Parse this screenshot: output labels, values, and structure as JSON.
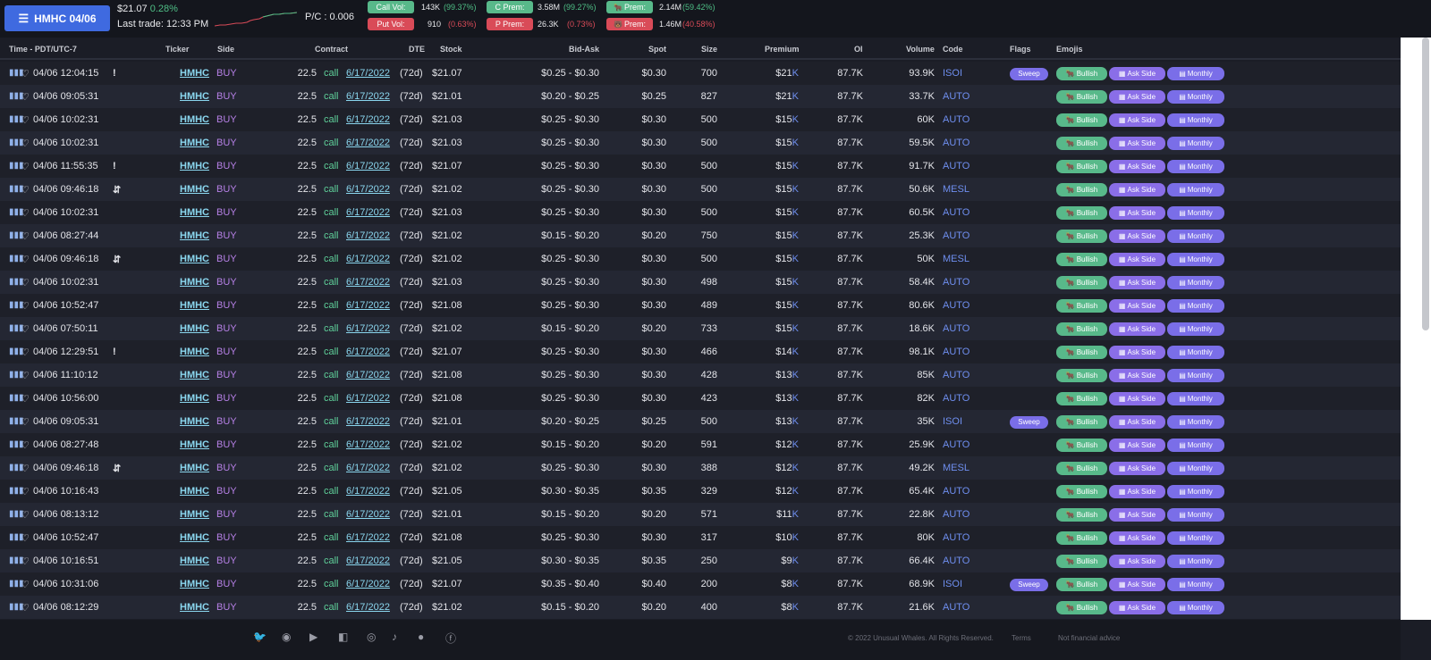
{
  "header": {
    "ticker_button": "HMHC 04/06",
    "price": "$21.07",
    "change": "0.28%",
    "last_trade": "Last trade: 12:33 PM",
    "pc_ratio": "P/C : 0.006",
    "stats": {
      "call_vol_label": "Call Vol:",
      "call_vol": "143K",
      "call_vol_pct": "(99.37%)",
      "put_vol_label": "Put Vol:",
      "put_vol": "910",
      "put_vol_pct": "(0.63%)",
      "c_prem_label": "C Prem:",
      "c_prem": "3.58M",
      "c_prem_pct": "(99.27%)",
      "p_prem_label": "P Prem:",
      "p_prem": "26.3K",
      "p_prem_pct": "(0.73%)",
      "bull_prem_label": "Prem:",
      "bull_prem": "2.14M",
      "bull_prem_pct": "(59.42%)",
      "bear_prem_label": "Prem:",
      "bear_prem": "1.46M",
      "bear_prem_pct": "(40.58%)"
    },
    "colors": {
      "accent": "#3f6ae0",
      "green": "#58b98a",
      "red": "#d94b58"
    }
  },
  "columns": {
    "time": "Time - PDT/UTC-7",
    "ticker": "Ticker",
    "side": "Side",
    "contract": "Contract",
    "dte": "DTE",
    "stock": "Stock",
    "bidask": "Bid-Ask",
    "spot": "Spot",
    "size": "Size",
    "premium": "Premium",
    "oi": "OI",
    "volume": "Volume",
    "code": "Code",
    "flags": "Flags",
    "emojis": "Emojis"
  },
  "chips": {
    "bullish": "Bullish",
    "ask_side": "Ask Side",
    "monthly": "Monthly"
  },
  "rows": [
    {
      "time": "04/06 12:04:15",
      "mark": "!",
      "ticker": "HMHC",
      "side": "BUY",
      "strike": "22.5",
      "type": "call",
      "exp": "6/17/2022",
      "dte": "(72d)",
      "stock": "$21.07",
      "bidask": "$0.25 - $0.30",
      "spot": "$0.30",
      "size": "700",
      "prem": "$21",
      "oi": "87.7K",
      "vol": "93.9K",
      "code": "ISOI",
      "flag": "Sweep"
    },
    {
      "time": "04/06 09:05:31",
      "mark": "",
      "ticker": "HMHC",
      "side": "BUY",
      "strike": "22.5",
      "type": "call",
      "exp": "6/17/2022",
      "dte": "(72d)",
      "stock": "$21.01",
      "bidask": "$0.20 - $0.25",
      "spot": "$0.25",
      "size": "827",
      "prem": "$21",
      "oi": "87.7K",
      "vol": "33.7K",
      "code": "AUTO",
      "flag": ""
    },
    {
      "time": "04/06 10:02:31",
      "mark": "",
      "ticker": "HMHC",
      "side": "BUY",
      "strike": "22.5",
      "type": "call",
      "exp": "6/17/2022",
      "dte": "(72d)",
      "stock": "$21.03",
      "bidask": "$0.25 - $0.30",
      "spot": "$0.30",
      "size": "500",
      "prem": "$15",
      "oi": "87.7K",
      "vol": "60K",
      "code": "AUTO",
      "flag": ""
    },
    {
      "time": "04/06 10:02:31",
      "mark": "",
      "ticker": "HMHC",
      "side": "BUY",
      "strike": "22.5",
      "type": "call",
      "exp": "6/17/2022",
      "dte": "(72d)",
      "stock": "$21.03",
      "bidask": "$0.25 - $0.30",
      "spot": "$0.30",
      "size": "500",
      "prem": "$15",
      "oi": "87.7K",
      "vol": "59.5K",
      "code": "AUTO",
      "flag": ""
    },
    {
      "time": "04/06 11:55:35",
      "mark": "!",
      "ticker": "HMHC",
      "side": "BUY",
      "strike": "22.5",
      "type": "call",
      "exp": "6/17/2022",
      "dte": "(72d)",
      "stock": "$21.07",
      "bidask": "$0.25 - $0.30",
      "spot": "$0.30",
      "size": "500",
      "prem": "$15",
      "oi": "87.7K",
      "vol": "91.7K",
      "code": "AUTO",
      "flag": ""
    },
    {
      "time": "04/06 09:46:18",
      "mark": "⇵",
      "ticker": "HMHC",
      "side": "BUY",
      "strike": "22.5",
      "type": "call",
      "exp": "6/17/2022",
      "dte": "(72d)",
      "stock": "$21.02",
      "bidask": "$0.25 - $0.30",
      "spot": "$0.30",
      "size": "500",
      "prem": "$15",
      "oi": "87.7K",
      "vol": "50.6K",
      "code": "MESL",
      "flag": ""
    },
    {
      "time": "04/06 10:02:31",
      "mark": "",
      "ticker": "HMHC",
      "side": "BUY",
      "strike": "22.5",
      "type": "call",
      "exp": "6/17/2022",
      "dte": "(72d)",
      "stock": "$21.03",
      "bidask": "$0.25 - $0.30",
      "spot": "$0.30",
      "size": "500",
      "prem": "$15",
      "oi": "87.7K",
      "vol": "60.5K",
      "code": "AUTO",
      "flag": ""
    },
    {
      "time": "04/06 08:27:44",
      "mark": "",
      "ticker": "HMHC",
      "side": "BUY",
      "strike": "22.5",
      "type": "call",
      "exp": "6/17/2022",
      "dte": "(72d)",
      "stock": "$21.02",
      "bidask": "$0.15 - $0.20",
      "spot": "$0.20",
      "size": "750",
      "prem": "$15",
      "oi": "87.7K",
      "vol": "25.3K",
      "code": "AUTO",
      "flag": ""
    },
    {
      "time": "04/06 09:46:18",
      "mark": "⇵",
      "ticker": "HMHC",
      "side": "BUY",
      "strike": "22.5",
      "type": "call",
      "exp": "6/17/2022",
      "dte": "(72d)",
      "stock": "$21.02",
      "bidask": "$0.25 - $0.30",
      "spot": "$0.30",
      "size": "500",
      "prem": "$15",
      "oi": "87.7K",
      "vol": "50K",
      "code": "MESL",
      "flag": ""
    },
    {
      "time": "04/06 10:02:31",
      "mark": "",
      "ticker": "HMHC",
      "side": "BUY",
      "strike": "22.5",
      "type": "call",
      "exp": "6/17/2022",
      "dte": "(72d)",
      "stock": "$21.03",
      "bidask": "$0.25 - $0.30",
      "spot": "$0.30",
      "size": "498",
      "prem": "$15",
      "oi": "87.7K",
      "vol": "58.4K",
      "code": "AUTO",
      "flag": ""
    },
    {
      "time": "04/06 10:52:47",
      "mark": "",
      "ticker": "HMHC",
      "side": "BUY",
      "strike": "22.5",
      "type": "call",
      "exp": "6/17/2022",
      "dte": "(72d)",
      "stock": "$21.08",
      "bidask": "$0.25 - $0.30",
      "spot": "$0.30",
      "size": "489",
      "prem": "$15",
      "oi": "87.7K",
      "vol": "80.6K",
      "code": "AUTO",
      "flag": ""
    },
    {
      "time": "04/06 07:50:11",
      "mark": "",
      "ticker": "HMHC",
      "side": "BUY",
      "strike": "22.5",
      "type": "call",
      "exp": "6/17/2022",
      "dte": "(72d)",
      "stock": "$21.02",
      "bidask": "$0.15 - $0.20",
      "spot": "$0.20",
      "size": "733",
      "prem": "$15",
      "oi": "87.7K",
      "vol": "18.6K",
      "code": "AUTO",
      "flag": ""
    },
    {
      "time": "04/06 12:29:51",
      "mark": "!",
      "ticker": "HMHC",
      "side": "BUY",
      "strike": "22.5",
      "type": "call",
      "exp": "6/17/2022",
      "dte": "(72d)",
      "stock": "$21.07",
      "bidask": "$0.25 - $0.30",
      "spot": "$0.30",
      "size": "466",
      "prem": "$14",
      "oi": "87.7K",
      "vol": "98.1K",
      "code": "AUTO",
      "flag": ""
    },
    {
      "time": "04/06 11:10:12",
      "mark": "",
      "ticker": "HMHC",
      "side": "BUY",
      "strike": "22.5",
      "type": "call",
      "exp": "6/17/2022",
      "dte": "(72d)",
      "stock": "$21.08",
      "bidask": "$0.25 - $0.30",
      "spot": "$0.30",
      "size": "428",
      "prem": "$13",
      "oi": "87.7K",
      "vol": "85K",
      "code": "AUTO",
      "flag": ""
    },
    {
      "time": "04/06 10:56:00",
      "mark": "",
      "ticker": "HMHC",
      "side": "BUY",
      "strike": "22.5",
      "type": "call",
      "exp": "6/17/2022",
      "dte": "(72d)",
      "stock": "$21.08",
      "bidask": "$0.25 - $0.30",
      "spot": "$0.30",
      "size": "423",
      "prem": "$13",
      "oi": "87.7K",
      "vol": "82K",
      "code": "AUTO",
      "flag": ""
    },
    {
      "time": "04/06 09:05:31",
      "mark": "",
      "ticker": "HMHC",
      "side": "BUY",
      "strike": "22.5",
      "type": "call",
      "exp": "6/17/2022",
      "dte": "(72d)",
      "stock": "$21.01",
      "bidask": "$0.20 - $0.25",
      "spot": "$0.25",
      "size": "500",
      "prem": "$13",
      "oi": "87.7K",
      "vol": "35K",
      "code": "ISOI",
      "flag": "Sweep"
    },
    {
      "time": "04/06 08:27:48",
      "mark": "",
      "ticker": "HMHC",
      "side": "BUY",
      "strike": "22.5",
      "type": "call",
      "exp": "6/17/2022",
      "dte": "(72d)",
      "stock": "$21.02",
      "bidask": "$0.15 - $0.20",
      "spot": "$0.20",
      "size": "591",
      "prem": "$12",
      "oi": "87.7K",
      "vol": "25.9K",
      "code": "AUTO",
      "flag": ""
    },
    {
      "time": "04/06 09:46:18",
      "mark": "⇵",
      "ticker": "HMHC",
      "side": "BUY",
      "strike": "22.5",
      "type": "call",
      "exp": "6/17/2022",
      "dte": "(72d)",
      "stock": "$21.02",
      "bidask": "$0.25 - $0.30",
      "spot": "$0.30",
      "size": "388",
      "prem": "$12",
      "oi": "87.7K",
      "vol": "49.2K",
      "code": "MESL",
      "flag": ""
    },
    {
      "time": "04/06 10:16:43",
      "mark": "",
      "ticker": "HMHC",
      "side": "BUY",
      "strike": "22.5",
      "type": "call",
      "exp": "6/17/2022",
      "dte": "(72d)",
      "stock": "$21.05",
      "bidask": "$0.30 - $0.35",
      "spot": "$0.35",
      "size": "329",
      "prem": "$12",
      "oi": "87.7K",
      "vol": "65.4K",
      "code": "AUTO",
      "flag": ""
    },
    {
      "time": "04/06 08:13:12",
      "mark": "",
      "ticker": "HMHC",
      "side": "BUY",
      "strike": "22.5",
      "type": "call",
      "exp": "6/17/2022",
      "dte": "(72d)",
      "stock": "$21.01",
      "bidask": "$0.15 - $0.20",
      "spot": "$0.20",
      "size": "571",
      "prem": "$11",
      "oi": "87.7K",
      "vol": "22.8K",
      "code": "AUTO",
      "flag": ""
    },
    {
      "time": "04/06 10:52:47",
      "mark": "",
      "ticker": "HMHC",
      "side": "BUY",
      "strike": "22.5",
      "type": "call",
      "exp": "6/17/2022",
      "dte": "(72d)",
      "stock": "$21.08",
      "bidask": "$0.25 - $0.30",
      "spot": "$0.30",
      "size": "317",
      "prem": "$10",
      "oi": "87.7K",
      "vol": "80K",
      "code": "AUTO",
      "flag": ""
    },
    {
      "time": "04/06 10:16:51",
      "mark": "",
      "ticker": "HMHC",
      "side": "BUY",
      "strike": "22.5",
      "type": "call",
      "exp": "6/17/2022",
      "dte": "(72d)",
      "stock": "$21.05",
      "bidask": "$0.30 - $0.35",
      "spot": "$0.35",
      "size": "250",
      "prem": "$9",
      "oi": "87.7K",
      "vol": "66.4K",
      "code": "AUTO",
      "flag": ""
    },
    {
      "time": "04/06 10:31:06",
      "mark": "",
      "ticker": "HMHC",
      "side": "BUY",
      "strike": "22.5",
      "type": "call",
      "exp": "6/17/2022",
      "dte": "(72d)",
      "stock": "$21.07",
      "bidask": "$0.35 - $0.40",
      "spot": "$0.40",
      "size": "200",
      "prem": "$8",
      "oi": "87.7K",
      "vol": "68.9K",
      "code": "ISOI",
      "flag": "Sweep"
    },
    {
      "time": "04/06 08:12:29",
      "mark": "",
      "ticker": "HMHC",
      "side": "BUY",
      "strike": "22.5",
      "type": "call",
      "exp": "6/17/2022",
      "dte": "(72d)",
      "stock": "$21.02",
      "bidask": "$0.15 - $0.20",
      "spot": "$0.20",
      "size": "400",
      "prem": "$8",
      "oi": "87.7K",
      "vol": "21.6K",
      "code": "AUTO",
      "flag": ""
    }
  ],
  "premium_suffix": "K",
  "footer": {
    "copyright": "© 2022 Unusual Whales. All Rights Reserved.",
    "terms": "Terms",
    "disclaimer": "Not financial advice"
  }
}
